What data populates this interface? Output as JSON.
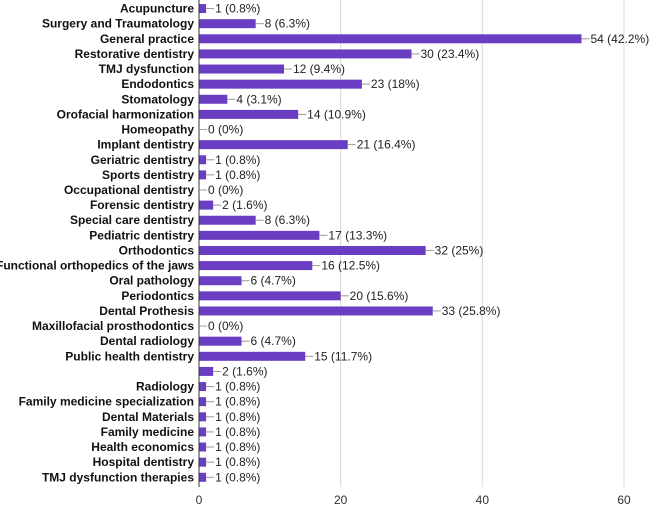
{
  "chart_data": {
    "type": "bar",
    "orientation": "horizontal",
    "categories": [
      "Acupuncture",
      "Surgery and Traumatology",
      "General practice",
      "Restorative dentistry",
      "TMJ dysfunction",
      "Endodontics",
      "Stomatology",
      "Orofacial harmonization",
      "Homeopathy",
      "Implant dentistry",
      "Geriatric dentistry",
      "Sports dentistry",
      "Occupational dentistry",
      "Forensic dentistry",
      "Special care dentistry",
      "Pediatric dentistry",
      "Orthodontics",
      "Functional orthopedics of the jaws",
      "Oral pathology",
      "Periodontics",
      "Dental Prothesis",
      "Maxillofacial prosthodontics",
      "Dental radiology",
      "Public health dentistry",
      "",
      "Radiology",
      "Family medicine specialization",
      "Dental Materials",
      "Family medicine",
      "Health economics",
      "Hospital dentistry",
      "TMJ dysfunction therapies"
    ],
    "values": [
      1,
      8,
      54,
      30,
      12,
      23,
      4,
      14,
      0,
      21,
      1,
      1,
      0,
      2,
      8,
      17,
      32,
      16,
      6,
      20,
      33,
      0,
      6,
      15,
      2,
      1,
      1,
      1,
      1,
      1,
      1,
      1
    ],
    "value_labels": [
      "1 (0.8%)",
      "8 (6.3%)",
      "54 (42.2%)",
      "30 (23.4%)",
      "12 (9.4%)",
      "23 (18%)",
      "4 (3.1%)",
      "14 (10.9%)",
      "0 (0%)",
      "21 (16.4%)",
      "1 (0.8%)",
      "1 (0.8%)",
      "0 (0%)",
      "2 (1.6%)",
      "8 (6.3%)",
      "17 (13.3%)",
      "32 (25%)",
      "16 (12.5%)",
      "6 (4.7%)",
      "20 (15.6%)",
      "33 (25.8%)",
      "0 (0%)",
      "6 (4.7%)",
      "15 (11.7%)",
      "2 (1.6%)",
      "1 (0.8%)",
      "1 (0.8%)",
      "1 (0.8%)",
      "1 (0.8%)",
      "1 (0.8%)",
      "1 (0.8%)",
      "1 (0.8%)"
    ],
    "xlim": [
      0,
      60
    ],
    "x_ticks": [
      0,
      20,
      40,
      60
    ],
    "x_tick_labels": [
      "0",
      "20",
      "40",
      "60"
    ],
    "grid": "vertical",
    "legend": "none",
    "bar_color": "#6a3ec2",
    "grid_color": "#d9d9d9",
    "axis_color": "#333333"
  }
}
